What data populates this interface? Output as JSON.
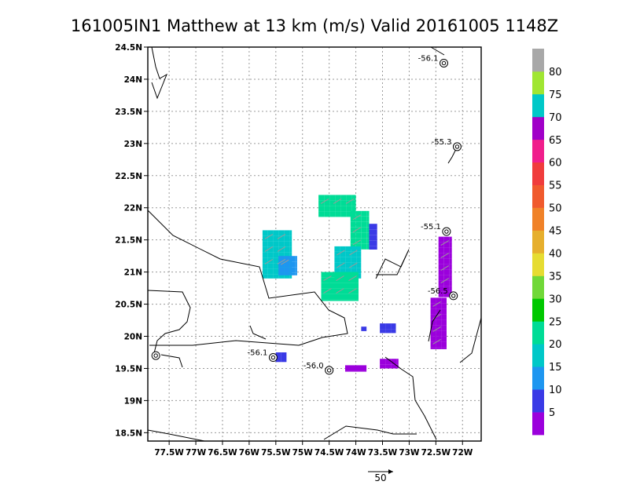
{
  "chart_data": {
    "type": "heatmap",
    "title": "161005IN1 Matthew at 13 km (m/s) Valid 20161005 1148Z",
    "x_ticks": [
      {
        "v": -77.5,
        "label": "77.5W"
      },
      {
        "v": -77.0,
        "label": "77W"
      },
      {
        "v": -76.5,
        "label": "76.5W"
      },
      {
        "v": -76.0,
        "label": "76W"
      },
      {
        "v": -75.5,
        "label": "75.5W"
      },
      {
        "v": -75.0,
        "label": "75W"
      },
      {
        "v": -74.5,
        "label": "74.5W"
      },
      {
        "v": -74.0,
        "label": "74W"
      },
      {
        "v": -73.5,
        "label": "73.5W"
      },
      {
        "v": -73.0,
        "label": "73W"
      },
      {
        "v": -72.5,
        "label": "72.5W"
      },
      {
        "v": -72.0,
        "label": "72W"
      }
    ],
    "y_ticks": [
      {
        "v": 18.5,
        "label": "18.5N"
      },
      {
        "v": 19.0,
        "label": "19N"
      },
      {
        "v": 19.5,
        "label": "19.5N"
      },
      {
        "v": 20.0,
        "label": "20N"
      },
      {
        "v": 20.5,
        "label": "20.5N"
      },
      {
        "v": 21.0,
        "label": "21N"
      },
      {
        "v": 21.5,
        "label": "21.5N"
      },
      {
        "v": 22.0,
        "label": "22N"
      },
      {
        "v": 22.5,
        "label": "22.5N"
      },
      {
        "v": 23.0,
        "label": "23N"
      },
      {
        "v": 23.5,
        "label": "23.5N"
      },
      {
        "v": 24.0,
        "label": "24N"
      },
      {
        "v": 24.5,
        "label": "24.5N"
      }
    ],
    "xlim": [
      -77.9,
      -71.65
    ],
    "ylim": [
      18.37,
      24.5
    ],
    "grid": true,
    "colorbar": {
      "placement": "right",
      "levels": [
        {
          "label": "5",
          "color": "#9b00dc"
        },
        {
          "label": "10",
          "color": "#3a3ae6"
        },
        {
          "label": "15",
          "color": "#1e96f0"
        },
        {
          "label": "20",
          "color": "#00c8c8"
        },
        {
          "label": "25",
          "color": "#00dc96"
        },
        {
          "label": "30",
          "color": "#00c800"
        },
        {
          "label": "35",
          "color": "#70d838"
        },
        {
          "label": "40",
          "color": "#e6dc32"
        },
        {
          "label": "45",
          "color": "#e6af2d"
        },
        {
          "label": "50",
          "color": "#f08228"
        },
        {
          "label": "55",
          "color": "#f05a2d"
        },
        {
          "label": "60",
          "color": "#f03c3c"
        },
        {
          "label": "65",
          "color": "#f01e8c"
        },
        {
          "label": "70",
          "color": "#a000c8"
        },
        {
          "label": "75",
          "color": "#00c8c8"
        },
        {
          "label": "80",
          "color": "#a0e632"
        },
        {
          "label": "",
          "color": "#a8a8a8"
        }
      ]
    },
    "wind_regions": [
      {
        "lon": [
          -75.75,
          -75.2
        ],
        "lat": [
          20.9,
          21.65
        ],
        "value": 17
      },
      {
        "lon": [
          -75.45,
          -75.1
        ],
        "lat": [
          20.95,
          21.25
        ],
        "value": 14
      },
      {
        "lon": [
          -74.7,
          -74.0
        ],
        "lat": [
          21.85,
          22.2
        ],
        "value": 22
      },
      {
        "lon": [
          -74.1,
          -73.75
        ],
        "lat": [
          21.35,
          21.95
        ],
        "value": 21
      },
      {
        "lon": [
          -74.4,
          -73.9
        ],
        "lat": [
          20.9,
          21.4
        ],
        "value": 20
      },
      {
        "lon": [
          -74.65,
          -73.95
        ],
        "lat": [
          20.55,
          21.0
        ],
        "value": 23
      },
      {
        "lon": [
          -73.75,
          -73.6
        ],
        "lat": [
          21.35,
          21.75
        ],
        "value": 10
      },
      {
        "lon": [
          -73.55,
          -73.25
        ],
        "lat": [
          20.05,
          20.2
        ],
        "value": 10
      },
      {
        "lon": [
          -73.9,
          -73.8
        ],
        "lat": [
          20.08,
          20.15
        ],
        "value": 6
      },
      {
        "lon": [
          -75.5,
          -75.3
        ],
        "lat": [
          19.6,
          19.75
        ],
        "value": 9
      },
      {
        "lon": [
          -74.2,
          -73.8
        ],
        "lat": [
          19.45,
          19.55
        ],
        "value": 5
      },
      {
        "lon": [
          -73.55,
          -73.2
        ],
        "lat": [
          19.5,
          19.65
        ],
        "value": 5
      },
      {
        "lon": [
          -72.6,
          -72.3
        ],
        "lat": [
          19.8,
          20.6
        ],
        "value": 5
      },
      {
        "lon": [
          -72.45,
          -72.2
        ],
        "lat": [
          20.6,
          21.55
        ],
        "value": 5
      }
    ],
    "annotations": [
      {
        "lon": -72.35,
        "lat": 24.25,
        "label": "-56.1"
      },
      {
        "lon": -72.1,
        "lat": 22.95,
        "label": "-55.3"
      },
      {
        "lon": -72.3,
        "lat": 21.63,
        "label": "-55.1"
      },
      {
        "lon": -72.17,
        "lat": 20.63,
        "label": "-56.5"
      },
      {
        "lon": -75.55,
        "lat": 19.67,
        "label": "-56.1"
      },
      {
        "lon": -74.5,
        "lat": 19.47,
        "label": "-56.0"
      },
      {
        "lon": -77.75,
        "lat": 19.7,
        "label": ""
      }
    ],
    "vector_key": {
      "label": "50"
    }
  }
}
